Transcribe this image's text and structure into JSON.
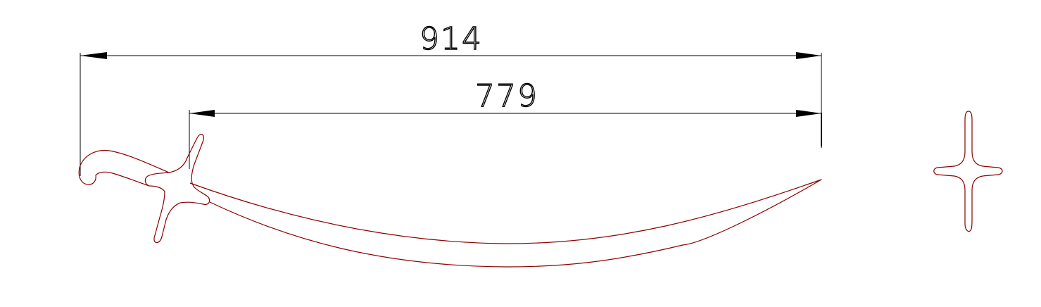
{
  "dimensions": {
    "overall_length": "914",
    "blade_length": "779"
  },
  "colors": {
    "outline": "#8b0000",
    "dimension": "#000000",
    "background": "#ffffff"
  }
}
